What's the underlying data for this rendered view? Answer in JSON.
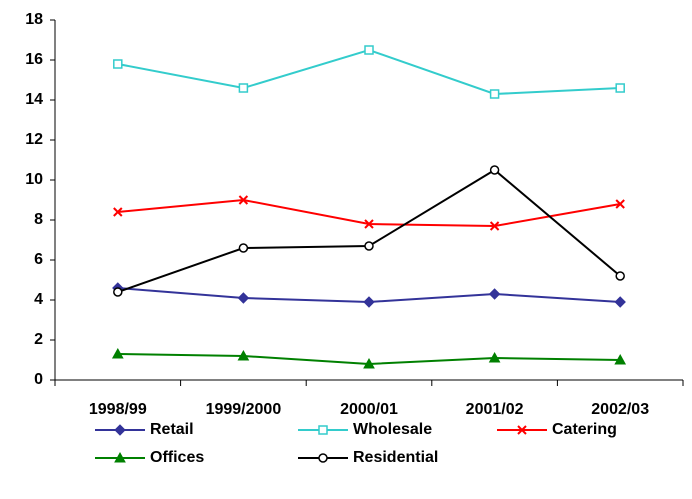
{
  "chart_data": {
    "type": "line",
    "categories": [
      "1998/99",
      "1999/2000",
      "2000/01",
      "2001/02",
      "2002/03"
    ],
    "series": [
      {
        "name": "Retail",
        "color": "#333399",
        "marker": "diamond",
        "values": [
          4.6,
          4.1,
          3.9,
          4.3,
          3.9
        ]
      },
      {
        "name": "Wholesale",
        "color": "#33CCCC",
        "marker": "square-open",
        "values": [
          15.8,
          14.6,
          16.5,
          14.3,
          14.6
        ]
      },
      {
        "name": "Catering",
        "color": "#FF0000",
        "marker": "x",
        "values": [
          8.4,
          9.0,
          7.8,
          7.7,
          8.8
        ]
      },
      {
        "name": "Offices",
        "color": "#008000",
        "marker": "triangle",
        "values": [
          1.3,
          1.2,
          0.8,
          1.1,
          1.0
        ]
      },
      {
        "name": "Residential",
        "color": "#000000",
        "marker": "circle-open",
        "values": [
          4.4,
          6.6,
          6.7,
          10.5,
          5.2
        ]
      }
    ],
    "ylim": [
      0,
      18
    ],
    "yticks": [
      0,
      2,
      4,
      6,
      8,
      10,
      12,
      14,
      16,
      18
    ],
    "grid": false,
    "legend": "bottom"
  }
}
